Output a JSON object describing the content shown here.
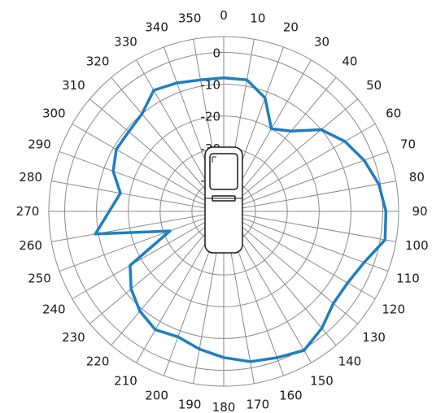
{
  "chart_data": {
    "type": "polar-line",
    "title": "",
    "angle_unit": "degrees",
    "angle_zero": "top",
    "angle_direction": "clockwise",
    "angle_step": 10,
    "angle_tick_labels": [
      "0",
      "10",
      "20",
      "30",
      "40",
      "50",
      "60",
      "70",
      "80",
      "90",
      "100",
      "110",
      "120",
      "130",
      "140",
      "150",
      "160",
      "170",
      "180",
      "190",
      "200",
      "210",
      "220",
      "230",
      "240",
      "250",
      "260",
      "270",
      "280",
      "290",
      "300",
      "310",
      "320",
      "330",
      "340",
      "350"
    ],
    "radial_range": [
      -50,
      5
    ],
    "radial_ticks": [
      0,
      -10,
      -20,
      -30,
      -40
    ],
    "radial_tick_labels": [
      "0",
      "-10",
      "-20",
      "-30",
      "-40"
    ],
    "grid": true,
    "legend": "none",
    "colors": {
      "series": "#1f7fc1",
      "grid": "#8a8a8a",
      "text": "#1a1a1a"
    },
    "center_icon": "flip-phone-icon",
    "series": [
      {
        "angles": [
          0,
          10,
          20,
          30,
          40,
          50,
          60,
          70,
          80,
          90,
          100,
          110,
          120,
          130,
          140,
          150,
          160,
          170,
          180,
          190,
          200,
          210,
          220,
          230,
          240,
          250,
          260,
          270,
          280,
          290,
          300,
          310,
          320,
          330,
          340,
          350
        ],
        "values": [
          -8,
          -8,
          -12,
          -20,
          -17,
          -10,
          -6,
          -3,
          -0.5,
          1,
          1.5,
          -3,
          -5,
          -5,
          -2,
          0.5,
          -1,
          -2,
          -4,
          -6,
          -8,
          -7,
          -9,
          -12,
          -16,
          -32,
          -9,
          -14,
          -17,
          -13,
          -11,
          -11,
          -10,
          -6,
          -7,
          -8
        ]
      }
    ]
  }
}
